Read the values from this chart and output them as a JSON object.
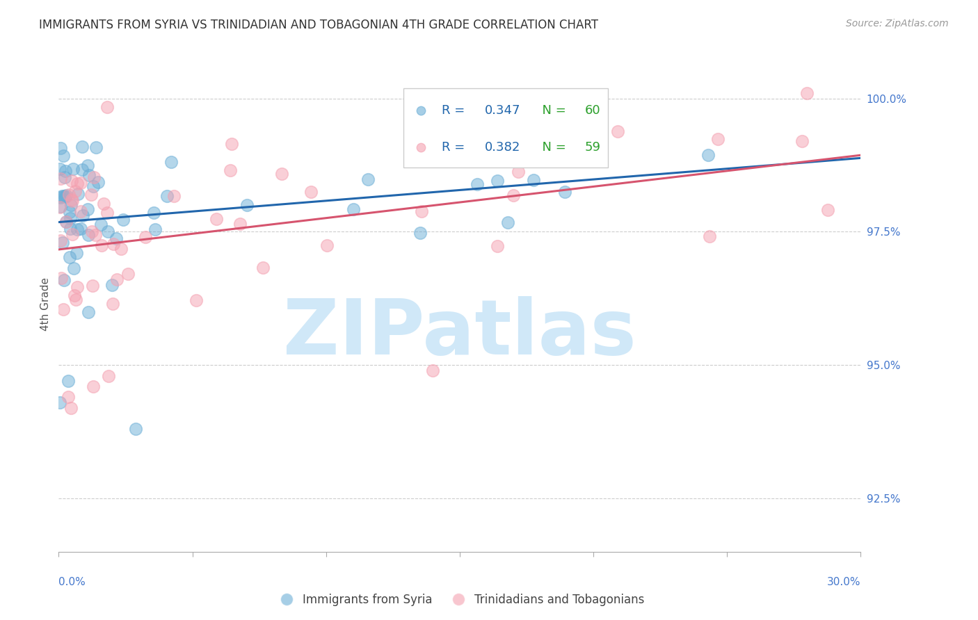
{
  "title": "IMMIGRANTS FROM SYRIA VS TRINIDADIAN AND TOBAGONIAN 4TH GRADE CORRELATION CHART",
  "source": "Source: ZipAtlas.com",
  "ylabel": "4th Grade",
  "yticks": [
    92.5,
    95.0,
    97.5,
    100.0
  ],
  "ytick_labels": [
    "92.5%",
    "95.0%",
    "97.5%",
    "100.0%"
  ],
  "xmin": 0.0,
  "xmax": 30.0,
  "ymin": 91.5,
  "ymax": 100.8,
  "blue_R": 0.347,
  "blue_N": 60,
  "pink_R": 0.382,
  "pink_N": 59,
  "blue_color": "#6baed6",
  "pink_color": "#f4a0b0",
  "blue_line_color": "#2166ac",
  "pink_line_color": "#d6546e",
  "blue_label": "Immigrants from Syria",
  "pink_label": "Trinidadians and Tobagonians",
  "r_text_color": "#2166ac",
  "n_text_color": "#2ca02c",
  "watermark": "ZIPatlas",
  "watermark_color": "#d0e8f8",
  "background_color": "#ffffff",
  "grid_color": "#cccccc",
  "axis_label_color": "#4477cc",
  "title_color": "#333333"
}
